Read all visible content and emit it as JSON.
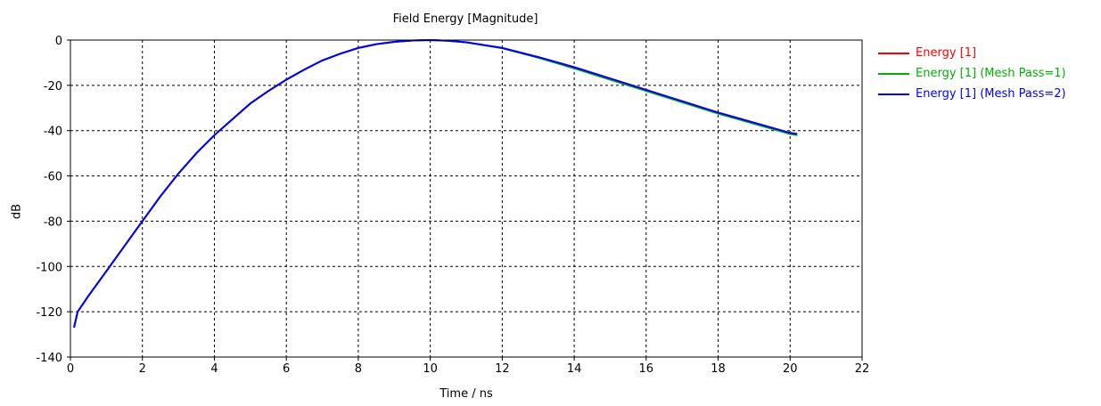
{
  "chart_data": {
    "type": "line",
    "title": "Field Energy [Magnitude]",
    "xlabel": "Time / ns",
    "ylabel": "dB",
    "xlim": [
      0,
      22
    ],
    "ylim": [
      -140,
      0
    ],
    "xticks": [
      0,
      2,
      4,
      6,
      8,
      10,
      12,
      14,
      16,
      18,
      20,
      22
    ],
    "yticks": [
      0,
      -20,
      -40,
      -60,
      -80,
      -100,
      -120,
      -140
    ],
    "grid": true,
    "grid_style": "dashed",
    "legend_position": "right",
    "series": [
      {
        "name": "Energy [1]",
        "color": "#ff0000",
        "x": [
          0.1,
          0.2,
          0.5,
          1,
          1.5,
          2,
          2.5,
          3,
          3.5,
          4,
          4.5,
          5,
          5.5,
          6,
          6.5,
          7,
          7.5,
          8,
          8.5,
          9,
          9.5,
          10,
          10.5,
          11,
          12,
          13,
          14,
          15,
          16,
          17,
          18,
          19,
          20,
          20.2
        ],
        "y": [
          -127,
          -120,
          -113,
          -102,
          -91,
          -80,
          -69,
          -59,
          -50,
          -42,
          -35,
          -28,
          -22.5,
          -17.5,
          -13,
          -9,
          -6,
          -3.5,
          -1.8,
          -0.8,
          -0.2,
          0,
          -0.3,
          -1,
          -3.5,
          -7.5,
          -12,
          -17,
          -22,
          -27,
          -32,
          -36.5,
          -41,
          -41.5
        ]
      },
      {
        "name": "Energy [1] (Mesh Pass=1)",
        "color": "#00b000",
        "x": [
          0.1,
          0.2,
          0.5,
          1,
          1.5,
          2,
          2.5,
          3,
          3.5,
          4,
          4.5,
          5,
          5.5,
          6,
          6.5,
          7,
          7.5,
          8,
          8.5,
          9,
          9.5,
          10,
          10.5,
          11,
          12,
          13,
          14,
          15,
          16,
          17,
          18,
          19,
          20,
          20.2
        ],
        "y": [
          -127,
          -120,
          -113,
          -102,
          -91,
          -80,
          -69,
          -59,
          -50,
          -42,
          -35,
          -28,
          -22.5,
          -17.5,
          -13,
          -9,
          -6,
          -3.5,
          -1.8,
          -0.8,
          -0.2,
          0,
          -0.3,
          -1,
          -3.6,
          -7.8,
          -12.5,
          -17.5,
          -22.5,
          -27.5,
          -32.5,
          -37,
          -41.5,
          -42
        ]
      },
      {
        "name": "Energy [1] (Mesh Pass=2)",
        "color": "#0000ff",
        "x": [
          0.1,
          0.2,
          0.5,
          1,
          1.5,
          2,
          2.5,
          3,
          3.5,
          4,
          4.5,
          5,
          5.5,
          6,
          6.5,
          7,
          7.5,
          8,
          8.5,
          9,
          9.5,
          10,
          10.5,
          11,
          12,
          13,
          14,
          15,
          16,
          17,
          18,
          19,
          20,
          20.2
        ],
        "y": [
          -127,
          -120,
          -113,
          -102,
          -91,
          -80,
          -69,
          -59,
          -50,
          -42,
          -35,
          -28,
          -22.5,
          -17.5,
          -13,
          -9,
          -6,
          -3.5,
          -1.8,
          -0.8,
          -0.2,
          0,
          -0.3,
          -1,
          -3.5,
          -7.5,
          -12,
          -17,
          -22,
          -27,
          -32,
          -36.5,
          -41,
          -41.5
        ]
      }
    ]
  }
}
